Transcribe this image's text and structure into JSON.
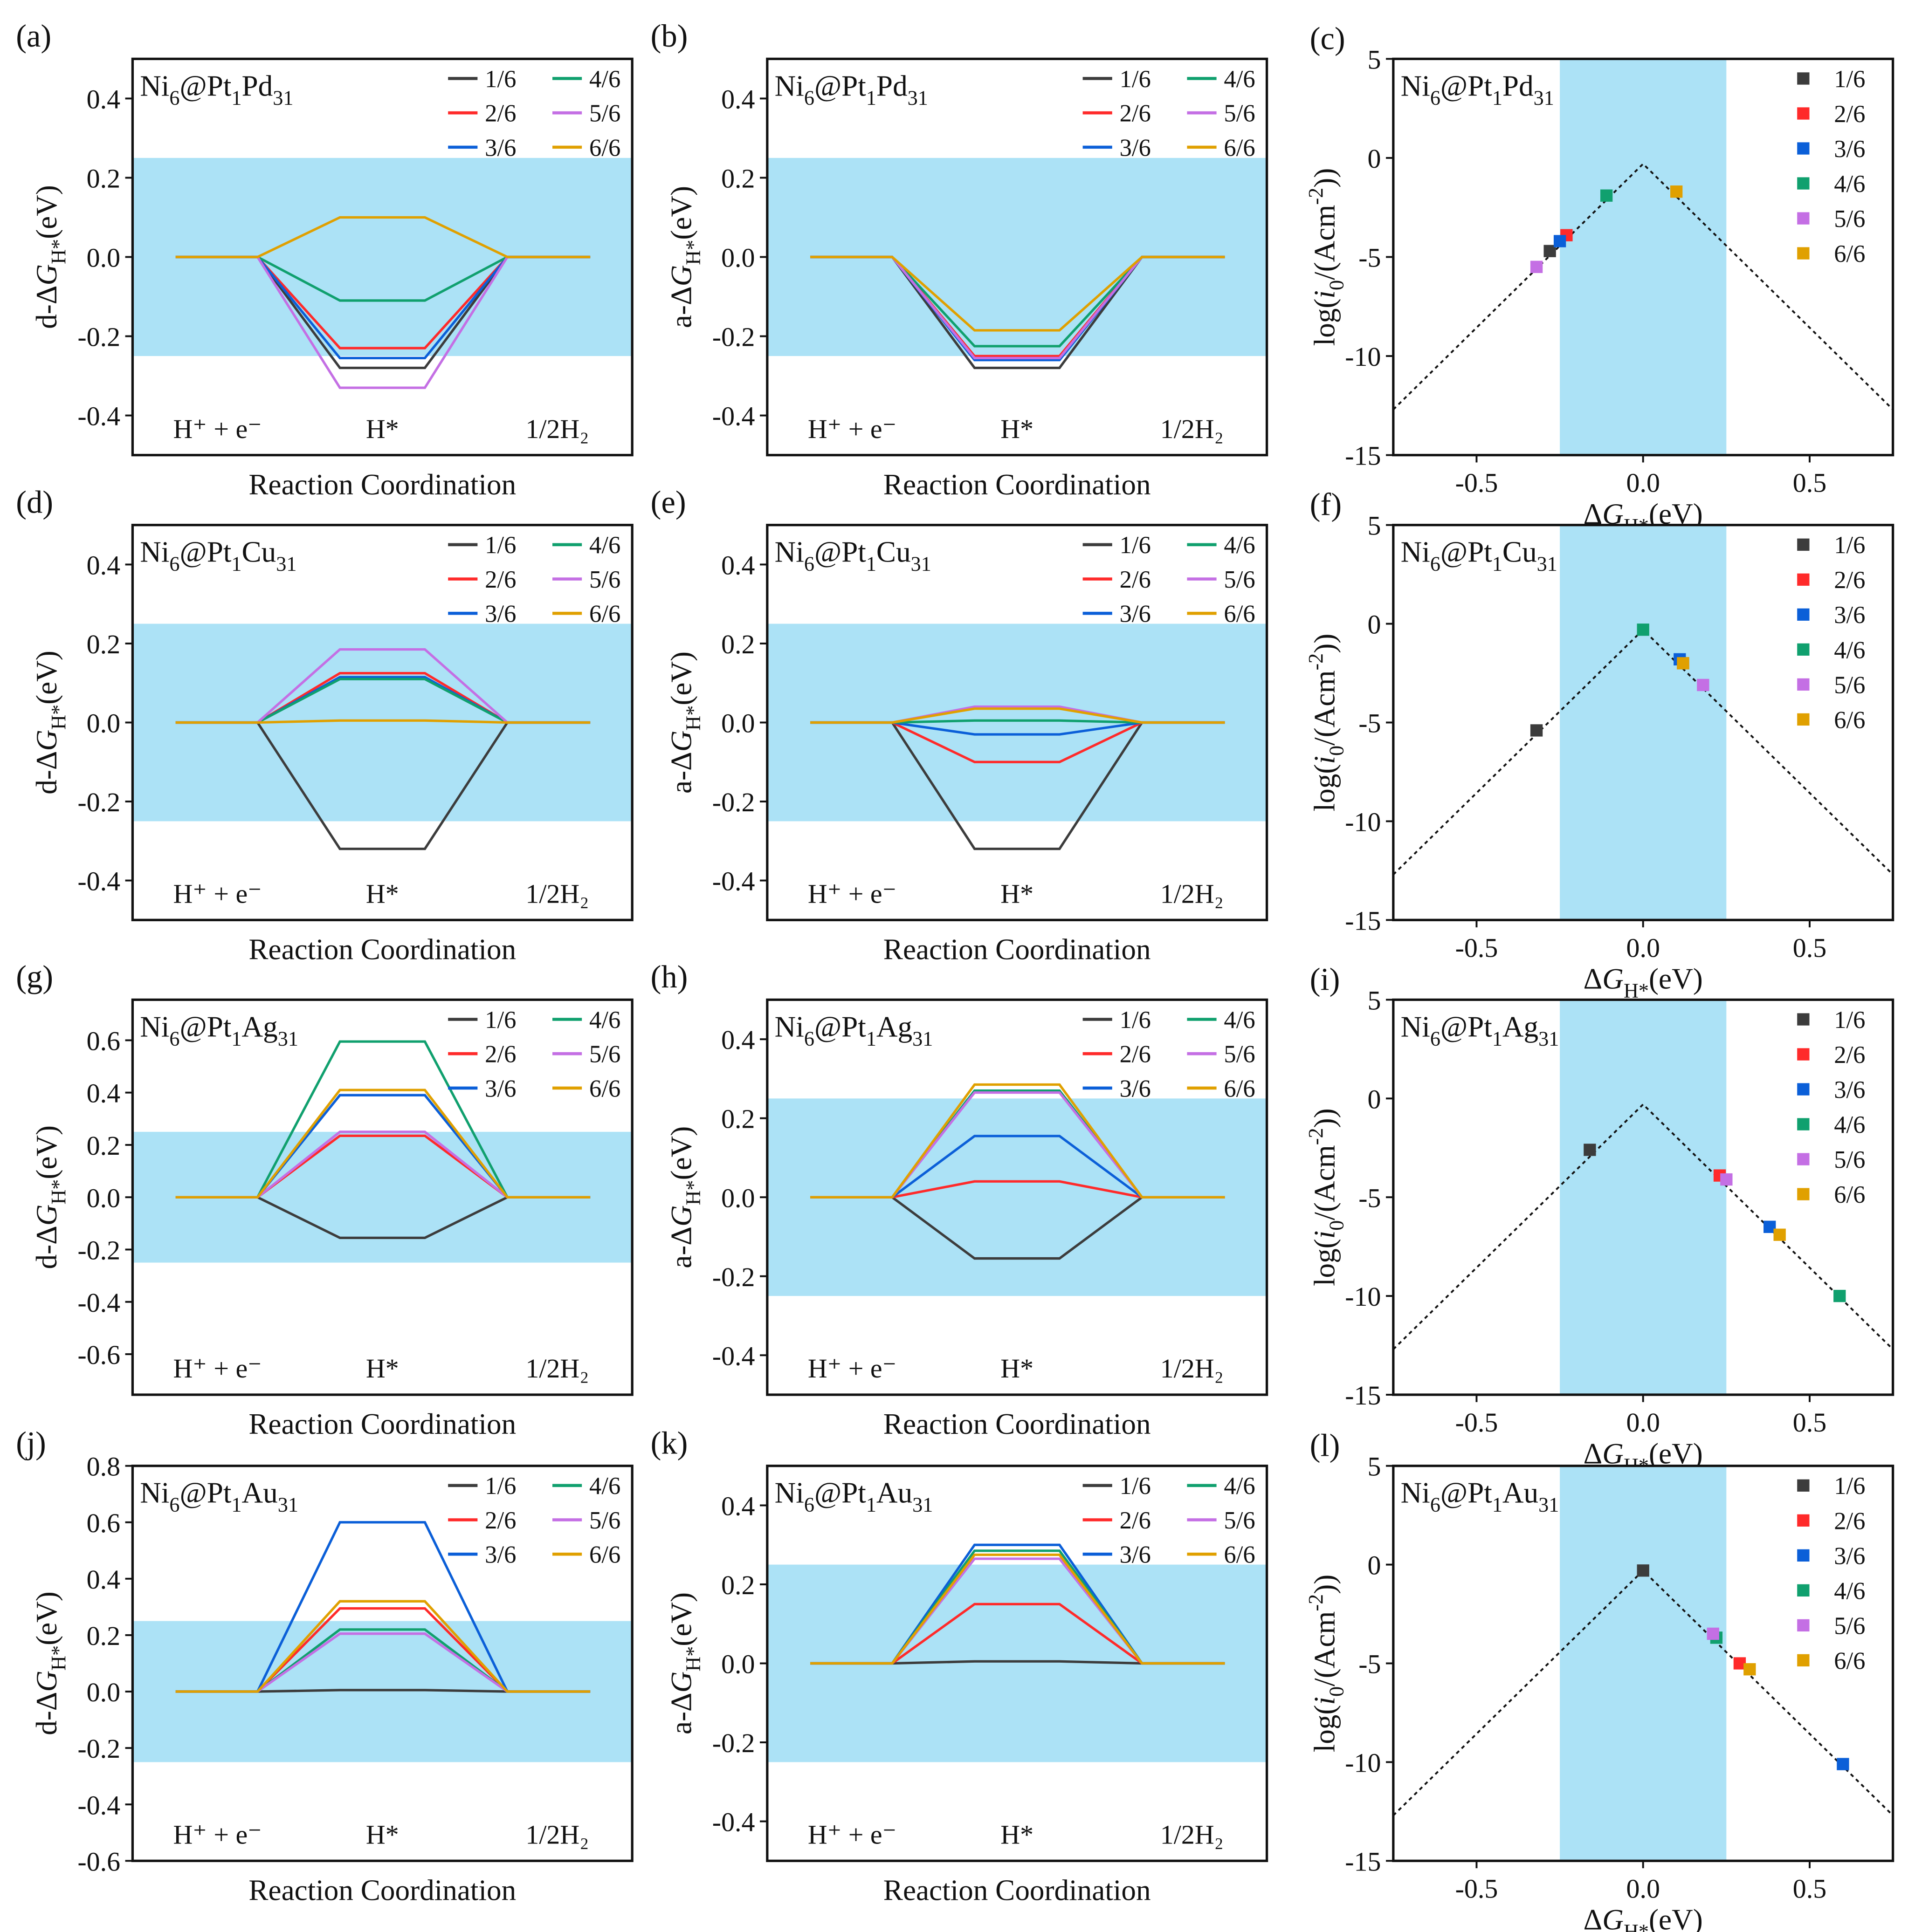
{
  "figure": {
    "shade_color": "#ace2f6",
    "series_names": [
      "1/6",
      "2/6",
      "3/6",
      "4/6",
      "5/6",
      "6/6"
    ],
    "series_colors": [
      "#3c3c3c",
      "#ff2a2a",
      "#0b5fd8",
      "#10a06e",
      "#c46fe4",
      "#e0a000"
    ],
    "stage_labels": [
      "H⁺ + e⁻",
      "H*",
      "1/2H₂"
    ],
    "energy_xlabel": "Reaction Coordination"
  },
  "chart_data": [
    {
      "panel": "(a)",
      "type": "line",
      "title": "Ni6@Pt1Pd31",
      "ylabel": [
        {
          "t": "d-Δ",
          "s": "n"
        },
        {
          "t": "G",
          "s": "i"
        },
        {
          "t": "H*",
          "s": "sub"
        },
        {
          "t": "(eV)",
          "s": "n"
        }
      ],
      "xlabel": "Reaction Coordination",
      "ylim": [
        -0.5,
        0.5
      ],
      "yticks": [
        -0.4,
        -0.2,
        0.0,
        0.2,
        0.4
      ],
      "shade": [
        -0.25,
        0.25
      ],
      "stages": [
        "H⁺ + e⁻",
        "H*",
        "1/2H₂"
      ],
      "series": [
        {
          "name": "1/6",
          "values": [
            0,
            -0.28,
            0
          ]
        },
        {
          "name": "2/6",
          "values": [
            0,
            -0.23,
            0
          ]
        },
        {
          "name": "3/6",
          "values": [
            0,
            -0.255,
            0
          ]
        },
        {
          "name": "4/6",
          "values": [
            0,
            -0.11,
            0
          ]
        },
        {
          "name": "5/6",
          "values": [
            0,
            -0.33,
            0
          ]
        },
        {
          "name": "6/6",
          "values": [
            0,
            0.1,
            0
          ]
        }
      ]
    },
    {
      "panel": "(b)",
      "type": "line",
      "title": "Ni6@Pt1Pd31",
      "ylabel": [
        {
          "t": "a-Δ",
          "s": "n"
        },
        {
          "t": "G",
          "s": "i"
        },
        {
          "t": "H*",
          "s": "sub"
        },
        {
          "t": "(eV)",
          "s": "n"
        }
      ],
      "xlabel": "Reaction Coordination",
      "ylim": [
        -0.5,
        0.5
      ],
      "yticks": [
        -0.4,
        -0.2,
        0.0,
        0.2,
        0.4
      ],
      "shade": [
        -0.25,
        0.25
      ],
      "stages": [
        "H⁺ + e⁻",
        "H*",
        "1/2H₂"
      ],
      "series": [
        {
          "name": "1/6",
          "values": [
            0,
            -0.28,
            0
          ]
        },
        {
          "name": "2/6",
          "values": [
            0,
            -0.25,
            0
          ]
        },
        {
          "name": "3/6",
          "values": [
            0,
            -0.26,
            0
          ]
        },
        {
          "name": "4/6",
          "values": [
            0,
            -0.225,
            0
          ]
        },
        {
          "name": "5/6",
          "values": [
            0,
            -0.255,
            0
          ]
        },
        {
          "name": "6/6",
          "values": [
            0,
            -0.185,
            0
          ]
        }
      ]
    },
    {
      "panel": "(c)",
      "type": "scatter",
      "title": "Ni6@Pt1Pd31",
      "ylabel": [
        {
          "t": "log(",
          "s": "n"
        },
        {
          "t": "i",
          "s": "i"
        },
        {
          "t": "0",
          "s": "sub"
        },
        {
          "t": "/(Acm",
          "s": "n"
        },
        {
          "t": "-2",
          "s": "sup"
        },
        {
          "t": "))",
          "s": "n"
        }
      ],
      "xlabel": [
        {
          "t": "Δ",
          "s": "n"
        },
        {
          "t": "G",
          "s": "i"
        },
        {
          "t": "H*",
          "s": "sub"
        },
        {
          "t": "(eV)",
          "s": "n"
        }
      ],
      "xlim": [
        -0.75,
        0.75
      ],
      "ylim": [
        -15,
        5
      ],
      "xticks": [
        -0.5,
        0.0,
        0.5
      ],
      "yticks": [
        -15,
        -10,
        -5,
        0,
        5
      ],
      "shade": [
        -0.25,
        0.25
      ],
      "volcano_line": {
        "x": [
          -0.75,
          0,
          0.75
        ],
        "y": [
          -12.7,
          -0.3,
          -12.7
        ]
      },
      "series": [
        {
          "name": "1/6",
          "x": -0.28,
          "y": -4.7
        },
        {
          "name": "2/6",
          "x": -0.23,
          "y": -3.9
        },
        {
          "name": "3/6",
          "x": -0.25,
          "y": -4.2
        },
        {
          "name": "4/6",
          "x": -0.11,
          "y": -1.9
        },
        {
          "name": "5/6",
          "x": -0.32,
          "y": -5.5
        },
        {
          "name": "6/6",
          "x": 0.1,
          "y": -1.7
        }
      ]
    },
    {
      "panel": "(d)",
      "type": "line",
      "title": "Ni6@Pt1Cu31",
      "ylabel": [
        {
          "t": "d-Δ",
          "s": "n"
        },
        {
          "t": "G",
          "s": "i"
        },
        {
          "t": "H*",
          "s": "sub"
        },
        {
          "t": "(eV)",
          "s": "n"
        }
      ],
      "xlabel": "Reaction Coordination",
      "ylim": [
        -0.5,
        0.5
      ],
      "yticks": [
        -0.4,
        -0.2,
        0.0,
        0.2,
        0.4
      ],
      "shade": [
        -0.25,
        0.25
      ],
      "stages": [
        "H⁺ + e⁻",
        "H*",
        "1/2H₂"
      ],
      "series": [
        {
          "name": "1/6",
          "values": [
            0,
            -0.32,
            0
          ]
        },
        {
          "name": "2/6",
          "values": [
            0,
            0.125,
            0
          ]
        },
        {
          "name": "3/6",
          "values": [
            0,
            0.115,
            0
          ]
        },
        {
          "name": "4/6",
          "values": [
            0,
            0.11,
            0
          ]
        },
        {
          "name": "5/6",
          "values": [
            0,
            0.185,
            0
          ]
        },
        {
          "name": "6/6",
          "values": [
            0,
            0.005,
            0
          ]
        }
      ]
    },
    {
      "panel": "(e)",
      "type": "line",
      "title": "Ni6@Pt1Cu31",
      "ylabel": [
        {
          "t": "a-Δ",
          "s": "n"
        },
        {
          "t": "G",
          "s": "i"
        },
        {
          "t": "H*",
          "s": "sub"
        },
        {
          "t": "(eV)",
          "s": "n"
        }
      ],
      "xlabel": "Reaction Coordination",
      "ylim": [
        -0.5,
        0.5
      ],
      "yticks": [
        -0.4,
        -0.2,
        0.0,
        0.2,
        0.4
      ],
      "shade": [
        -0.25,
        0.25
      ],
      "stages": [
        "H⁺ + e⁻",
        "H*",
        "1/2H₂"
      ],
      "series": [
        {
          "name": "1/6",
          "values": [
            0,
            -0.32,
            0
          ]
        },
        {
          "name": "2/6",
          "values": [
            0,
            -0.1,
            0
          ]
        },
        {
          "name": "3/6",
          "values": [
            0,
            -0.03,
            0
          ]
        },
        {
          "name": "4/6",
          "values": [
            0,
            0.005,
            0
          ]
        },
        {
          "name": "5/6",
          "values": [
            0,
            0.04,
            0
          ]
        },
        {
          "name": "6/6",
          "values": [
            0,
            0.035,
            0
          ]
        }
      ]
    },
    {
      "panel": "(f)",
      "type": "scatter",
      "title": "Ni6@Pt1Cu31",
      "ylabel": [
        {
          "t": "log(",
          "s": "n"
        },
        {
          "t": "i",
          "s": "i"
        },
        {
          "t": "0",
          "s": "sub"
        },
        {
          "t": "/(Acm",
          "s": "n"
        },
        {
          "t": "-2",
          "s": "sup"
        },
        {
          "t": "))",
          "s": "n"
        }
      ],
      "xlabel": [
        {
          "t": "Δ",
          "s": "n"
        },
        {
          "t": "G",
          "s": "i"
        },
        {
          "t": "H*",
          "s": "sub"
        },
        {
          "t": "(eV)",
          "s": "n"
        }
      ],
      "xlim": [
        -0.75,
        0.75
      ],
      "ylim": [
        -15,
        5
      ],
      "xticks": [
        -0.5,
        0.0,
        0.5
      ],
      "yticks": [
        -15,
        -10,
        -5,
        0,
        5
      ],
      "shade": [
        -0.25,
        0.25
      ],
      "volcano_line": {
        "x": [
          -0.75,
          0,
          0.75
        ],
        "y": [
          -12.7,
          -0.3,
          -12.7
        ]
      },
      "series": [
        {
          "name": "1/6",
          "x": -0.32,
          "y": -5.4
        },
        {
          "name": "2/6",
          "x": 0.12,
          "y": -2.0
        },
        {
          "name": "3/6",
          "x": 0.11,
          "y": -1.8
        },
        {
          "name": "4/6",
          "x": 0.0,
          "y": -0.3
        },
        {
          "name": "5/6",
          "x": 0.18,
          "y": -3.1
        },
        {
          "name": "6/6",
          "x": 0.12,
          "y": -2.0
        }
      ]
    },
    {
      "panel": "(g)",
      "type": "line",
      "title": "Ni6@Pt1Ag31",
      "ylabel": [
        {
          "t": "d-Δ",
          "s": "n"
        },
        {
          "t": "G",
          "s": "i"
        },
        {
          "t": "H*",
          "s": "sub"
        },
        {
          "t": "(eV)",
          "s": "n"
        }
      ],
      "xlabel": "Reaction Coordination",
      "ylim": [
        -0.755,
        0.755
      ],
      "yticks": [
        -0.6,
        -0.4,
        -0.2,
        0.0,
        0.2,
        0.4,
        0.6
      ],
      "shade": [
        -0.25,
        0.25
      ],
      "stages": [
        "H⁺ + e⁻",
        "H*",
        "1/2H₂"
      ],
      "series": [
        {
          "name": "1/6",
          "values": [
            0,
            -0.155,
            0
          ]
        },
        {
          "name": "2/6",
          "values": [
            0,
            0.235,
            0
          ]
        },
        {
          "name": "3/6",
          "values": [
            0,
            0.39,
            0
          ]
        },
        {
          "name": "4/6",
          "values": [
            0,
            0.595,
            0
          ]
        },
        {
          "name": "5/6",
          "values": [
            0,
            0.25,
            0
          ]
        },
        {
          "name": "6/6",
          "values": [
            0,
            0.41,
            0
          ]
        }
      ]
    },
    {
      "panel": "(h)",
      "type": "line",
      "title": "Ni6@Pt1Ag31",
      "ylabel": [
        {
          "t": "a-Δ",
          "s": "n"
        },
        {
          "t": "G",
          "s": "i"
        },
        {
          "t": "H*",
          "s": "sub"
        },
        {
          "t": "(eV)",
          "s": "n"
        }
      ],
      "xlabel": "Reaction Coordination",
      "ylim": [
        -0.5,
        0.5
      ],
      "yticks": [
        -0.4,
        -0.2,
        0.0,
        0.2,
        0.4
      ],
      "shade": [
        -0.25,
        0.25
      ],
      "stages": [
        "H⁺ + e⁻",
        "H*",
        "1/2H₂"
      ],
      "series": [
        {
          "name": "1/6",
          "values": [
            0,
            -0.155,
            0
          ]
        },
        {
          "name": "2/6",
          "values": [
            0,
            0.04,
            0
          ]
        },
        {
          "name": "3/6",
          "values": [
            0,
            0.155,
            0
          ]
        },
        {
          "name": "4/6",
          "values": [
            0,
            0.27,
            0
          ]
        },
        {
          "name": "5/6",
          "values": [
            0,
            0.265,
            0
          ]
        },
        {
          "name": "6/6",
          "values": [
            0,
            0.285,
            0
          ]
        }
      ]
    },
    {
      "panel": "(i)",
      "type": "scatter",
      "title": "Ni6@Pt1Ag31",
      "ylabel": [
        {
          "t": "log(",
          "s": "n"
        },
        {
          "t": "i",
          "s": "i"
        },
        {
          "t": "0",
          "s": "sub"
        },
        {
          "t": "/(Acm",
          "s": "n"
        },
        {
          "t": "-2",
          "s": "sup"
        },
        {
          "t": "))",
          "s": "n"
        }
      ],
      "xlabel": [
        {
          "t": "Δ",
          "s": "n"
        },
        {
          "t": "G",
          "s": "i"
        },
        {
          "t": "H*",
          "s": "sub"
        },
        {
          "t": "(eV)",
          "s": "n"
        }
      ],
      "xlim": [
        -0.75,
        0.75
      ],
      "ylim": [
        -15,
        5
      ],
      "xticks": [
        -0.5,
        0.0,
        0.5
      ],
      "yticks": [
        -15,
        -10,
        -5,
        0,
        5
      ],
      "shade": [
        -0.25,
        0.25
      ],
      "volcano_line": {
        "x": [
          -0.75,
          0,
          0.75
        ],
        "y": [
          -12.7,
          -0.3,
          -12.7
        ]
      },
      "series": [
        {
          "name": "1/6",
          "x": -0.16,
          "y": -2.6
        },
        {
          "name": "2/6",
          "x": 0.23,
          "y": -3.9
        },
        {
          "name": "3/6",
          "x": 0.38,
          "y": -6.5
        },
        {
          "name": "4/6",
          "x": 0.59,
          "y": -10.0
        },
        {
          "name": "5/6",
          "x": 0.25,
          "y": -4.1
        },
        {
          "name": "6/6",
          "x": 0.41,
          "y": -6.9
        }
      ]
    },
    {
      "panel": "(j)",
      "type": "line",
      "title": "Ni6@Pt1Au31",
      "ylabel": [
        {
          "t": "d-Δ",
          "s": "n"
        },
        {
          "t": "G",
          "s": "i"
        },
        {
          "t": "H*",
          "s": "sub"
        },
        {
          "t": "(eV)",
          "s": "n"
        }
      ],
      "xlabel": "Reaction Coordination",
      "ylim": [
        -0.6,
        0.8
      ],
      "yticks": [
        -0.6,
        -0.4,
        -0.2,
        0.0,
        0.2,
        0.4,
        0.6,
        0.8
      ],
      "shade": [
        -0.25,
        0.25
      ],
      "stages": [
        "H⁺ + e⁻",
        "H*",
        "1/2H₂"
      ],
      "series": [
        {
          "name": "1/6",
          "values": [
            0,
            0.005,
            0
          ]
        },
        {
          "name": "2/6",
          "values": [
            0,
            0.295,
            0
          ]
        },
        {
          "name": "3/6",
          "values": [
            0,
            0.6,
            0
          ]
        },
        {
          "name": "4/6",
          "values": [
            0,
            0.22,
            0
          ]
        },
        {
          "name": "5/6",
          "values": [
            0,
            0.205,
            0
          ]
        },
        {
          "name": "6/6",
          "values": [
            0,
            0.32,
            0
          ]
        }
      ]
    },
    {
      "panel": "(k)",
      "type": "line",
      "title": "Ni6@Pt1Au31",
      "ylabel": [
        {
          "t": "a-Δ",
          "s": "n"
        },
        {
          "t": "G",
          "s": "i"
        },
        {
          "t": "H*",
          "s": "sub"
        },
        {
          "t": "(eV)",
          "s": "n"
        }
      ],
      "xlabel": "Reaction Coordination",
      "ylim": [
        -0.5,
        0.5
      ],
      "yticks": [
        -0.4,
        -0.2,
        0.0,
        0.2,
        0.4
      ],
      "shade": [
        -0.25,
        0.25
      ],
      "stages": [
        "H⁺ + e⁻",
        "H*",
        "1/2H₂"
      ],
      "series": [
        {
          "name": "1/6",
          "values": [
            0,
            0.005,
            0
          ]
        },
        {
          "name": "2/6",
          "values": [
            0,
            0.15,
            0
          ]
        },
        {
          "name": "3/6",
          "values": [
            0,
            0.3,
            0
          ]
        },
        {
          "name": "4/6",
          "values": [
            0,
            0.285,
            0
          ]
        },
        {
          "name": "5/6",
          "values": [
            0,
            0.265,
            0
          ]
        },
        {
          "name": "6/6",
          "values": [
            0,
            0.275,
            0
          ]
        }
      ]
    },
    {
      "panel": "(l)",
      "type": "scatter",
      "title": "Ni6@Pt1Au31",
      "ylabel": [
        {
          "t": "log(",
          "s": "n"
        },
        {
          "t": "i",
          "s": "i"
        },
        {
          "t": "0",
          "s": "sub"
        },
        {
          "t": "/(Acm",
          "s": "n"
        },
        {
          "t": "-2",
          "s": "sup"
        },
        {
          "t": "))",
          "s": "n"
        }
      ],
      "xlabel": [
        {
          "t": "Δ",
          "s": "n"
        },
        {
          "t": "G",
          "s": "i"
        },
        {
          "t": "H*",
          "s": "sub"
        },
        {
          "t": "(eV)",
          "s": "n"
        }
      ],
      "xlim": [
        -0.75,
        0.75
      ],
      "ylim": [
        -15,
        5
      ],
      "xticks": [
        -0.5,
        0.0,
        0.5
      ],
      "yticks": [
        -15,
        -10,
        -5,
        0,
        5
      ],
      "shade": [
        -0.25,
        0.25
      ],
      "volcano_line": {
        "x": [
          -0.75,
          0,
          0.75
        ],
        "y": [
          -12.7,
          -0.3,
          -12.7
        ]
      },
      "series": [
        {
          "name": "1/6",
          "x": 0.0,
          "y": -0.3
        },
        {
          "name": "2/6",
          "x": 0.29,
          "y": -5.0
        },
        {
          "name": "3/6",
          "x": 0.6,
          "y": -10.1
        },
        {
          "name": "4/6",
          "x": 0.22,
          "y": -3.7
        },
        {
          "name": "5/6",
          "x": 0.21,
          "y": -3.5
        },
        {
          "name": "6/6",
          "x": 0.32,
          "y": -5.3
        }
      ]
    }
  ]
}
